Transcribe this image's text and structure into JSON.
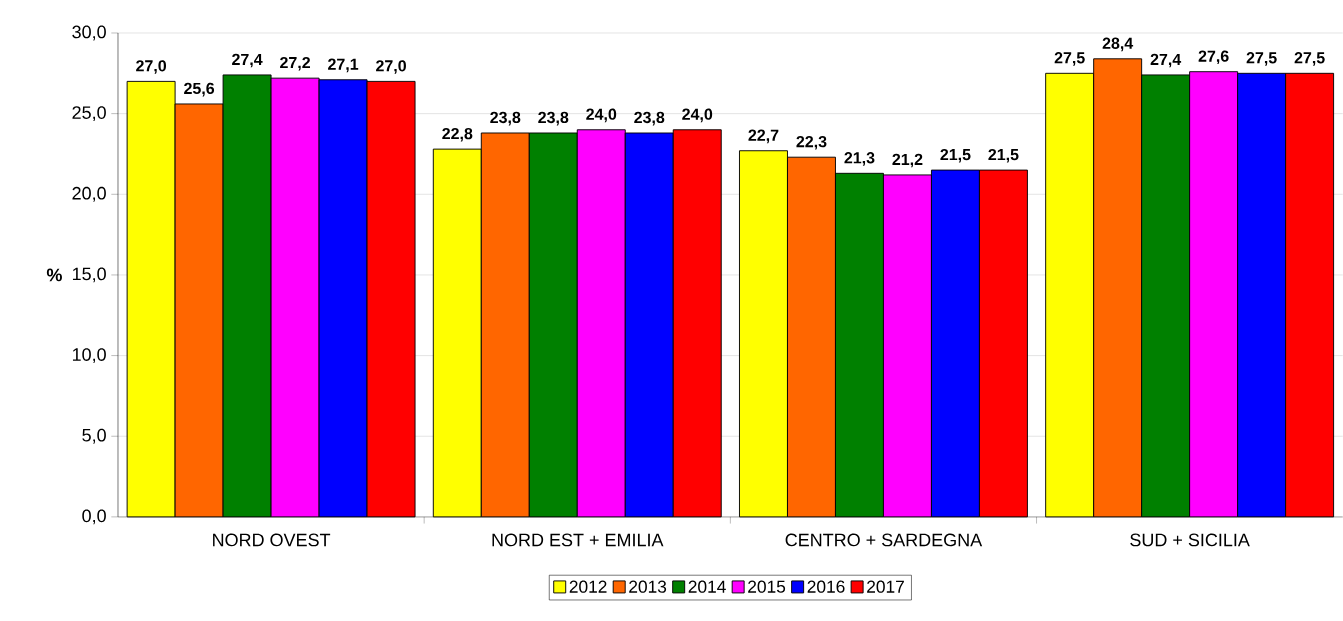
{
  "chart_data": {
    "type": "bar",
    "ylabel": "%",
    "categories": [
      "NORD OVEST",
      "NORD EST + EMILIA",
      "CENTRO + SARDEGNA",
      "SUD + SICILIA"
    ],
    "series": [
      {
        "name": "2012",
        "color": "#ffff00",
        "values": [
          27.0,
          22.8,
          22.7,
          27.5
        ],
        "value_labels": [
          "27,0",
          "22,8",
          "22,7",
          "27,5"
        ]
      },
      {
        "name": "2013",
        "color": "#ff6600",
        "values": [
          25.6,
          23.8,
          22.3,
          28.4
        ],
        "value_labels": [
          "25,6",
          "23,8",
          "22,3",
          "28,4"
        ]
      },
      {
        "name": "2014",
        "color": "#008000",
        "values": [
          27.4,
          23.8,
          21.3,
          27.4
        ],
        "value_labels": [
          "27,4",
          "23,8",
          "21,3",
          "27,4"
        ]
      },
      {
        "name": "2015",
        "color": "#ff00ff",
        "values": [
          27.2,
          24.0,
          21.2,
          27.6
        ],
        "value_labels": [
          "27,2",
          "24,0",
          "21,2",
          "27,6"
        ]
      },
      {
        "name": "2016",
        "color": "#0000ff",
        "values": [
          27.1,
          23.8,
          21.5,
          27.5
        ],
        "value_labels": [
          "27,1",
          "23,8",
          "21,5",
          "27,5"
        ]
      },
      {
        "name": "2017",
        "color": "#ff0000",
        "values": [
          27.0,
          24.0,
          21.5,
          27.5
        ],
        "value_labels": [
          "27,0",
          "24,0",
          "21,5",
          "27,5"
        ]
      }
    ],
    "ylim": [
      0,
      30
    ],
    "yticks": [
      {
        "value": 0,
        "label": "0,0"
      },
      {
        "value": 5,
        "label": "5,0"
      },
      {
        "value": 10,
        "label": "10,0"
      },
      {
        "value": 15,
        "label": "15,0"
      },
      {
        "value": 20,
        "label": "20,0"
      },
      {
        "value": 25,
        "label": "25,0"
      },
      {
        "value": 30,
        "label": "30,0"
      }
    ],
    "grid": "y",
    "legend": "bottom"
  }
}
